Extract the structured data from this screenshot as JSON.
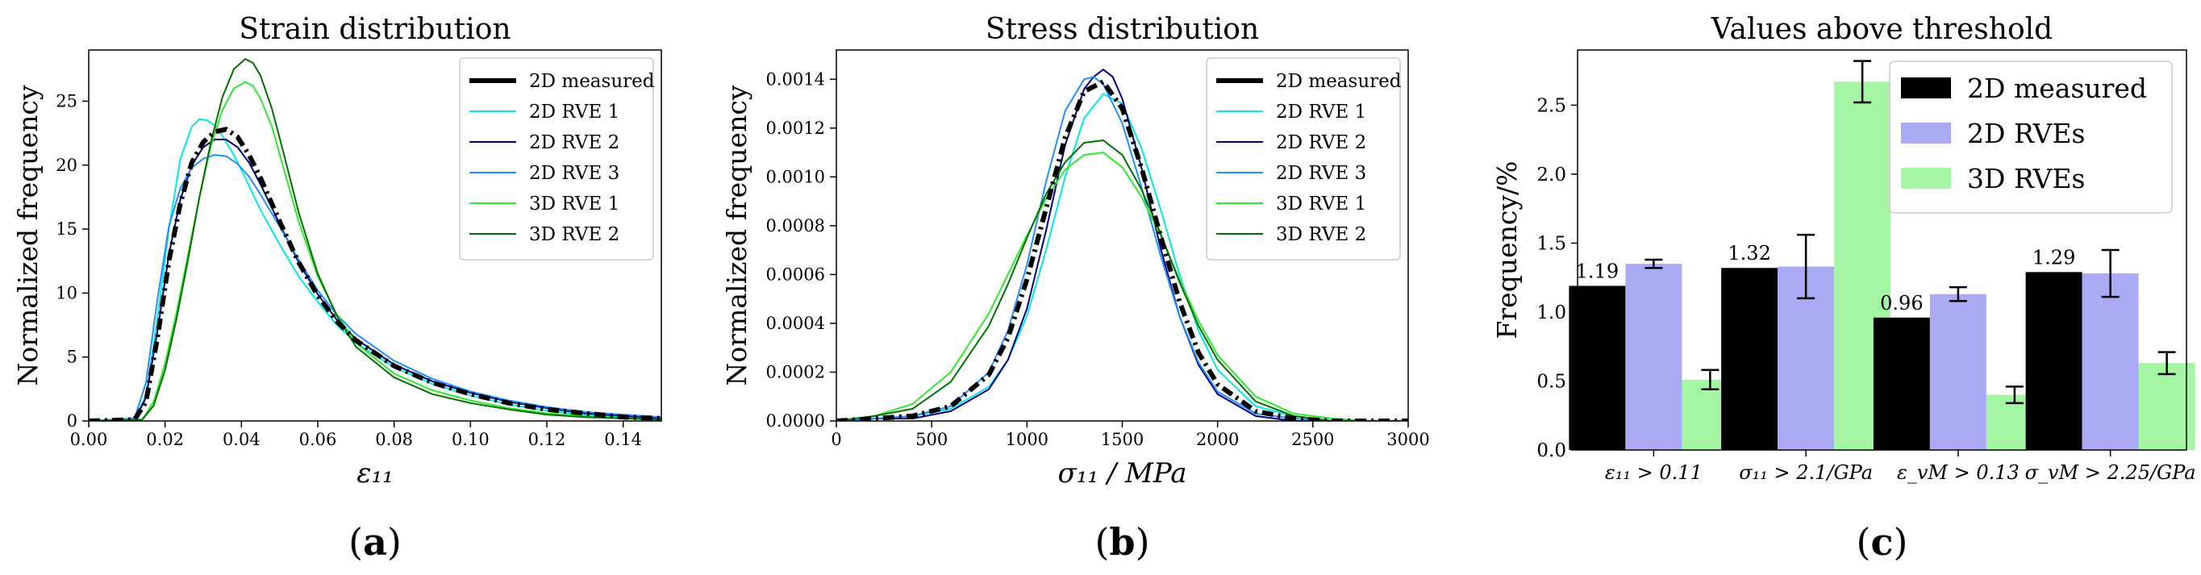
{
  "chart_data": [
    {
      "id": "a",
      "type": "line",
      "title": "Strain distribution",
      "xlabel": "ε₁₁",
      "ylabel": "Normalized frequency",
      "xlim": [
        0,
        0.15
      ],
      "ylim": [
        0,
        29
      ],
      "xticks": [
        0,
        0.02,
        0.04,
        0.06,
        0.08,
        0.1,
        0.12,
        0.14
      ],
      "xtick_labels": [
        "0.00",
        "0.02",
        "0.04",
        "0.06",
        "0.08",
        "0.10",
        "0.12",
        "0.14"
      ],
      "yticks": [
        0,
        5,
        10,
        15,
        20,
        25
      ],
      "ytick_labels": [
        "0",
        "5",
        "10",
        "15",
        "20",
        "25"
      ],
      "legend_position": "top-right",
      "panel_label": "(a)",
      "panel_letter": "a",
      "series": [
        {
          "name": "2D measured",
          "color": "#000000",
          "width": 6,
          "dash": "14,6,3,6",
          "x": [
            0,
            0.012,
            0.015,
            0.018,
            0.021,
            0.024,
            0.027,
            0.03,
            0.033,
            0.036,
            0.039,
            0.042,
            0.045,
            0.05,
            0.055,
            0.06,
            0.065,
            0.07,
            0.08,
            0.09,
            0.1,
            0.11,
            0.12,
            0.13,
            0.14,
            0.15
          ],
          "y": [
            0,
            0.1,
            1.5,
            6.5,
            12.5,
            17.0,
            20.2,
            21.8,
            22.6,
            22.8,
            22.2,
            20.8,
            19.0,
            15.6,
            12.4,
            9.8,
            7.8,
            6.3,
            4.3,
            3.0,
            2.1,
            1.4,
            0.9,
            0.6,
            0.3,
            0.2
          ]
        },
        {
          "name": "2D RVE 1",
          "color": "#00e8e8",
          "width": 2,
          "x": [
            0,
            0.012,
            0.015,
            0.018,
            0.021,
            0.024,
            0.027,
            0.029,
            0.031,
            0.033,
            0.035,
            0.038,
            0.041,
            0.045,
            0.05,
            0.055,
            0.06,
            0.065,
            0.07,
            0.08,
            0.09,
            0.1,
            0.11,
            0.12,
            0.13,
            0.14,
            0.15
          ],
          "y": [
            0,
            0.1,
            2.0,
            8.0,
            15.0,
            20.5,
            23.0,
            23.6,
            23.5,
            23.1,
            22.3,
            20.8,
            19.0,
            16.5,
            13.8,
            11.3,
            9.3,
            7.5,
            6.1,
            4.2,
            2.9,
            2.0,
            1.3,
            0.8,
            0.5,
            0.3,
            0.2
          ]
        },
        {
          "name": "2D RVE 2",
          "color": "#000080",
          "width": 2,
          "x": [
            0,
            0.012,
            0.015,
            0.018,
            0.021,
            0.024,
            0.027,
            0.03,
            0.033,
            0.036,
            0.039,
            0.042,
            0.045,
            0.05,
            0.055,
            0.06,
            0.065,
            0.07,
            0.08,
            0.09,
            0.1,
            0.11,
            0.12,
            0.13,
            0.14,
            0.15
          ],
          "y": [
            0,
            0.1,
            1.8,
            7.0,
            13.0,
            17.3,
            20.0,
            21.4,
            22.0,
            22.0,
            21.4,
            20.2,
            18.5,
            15.4,
            12.4,
            9.9,
            7.9,
            6.4,
            4.4,
            3.1,
            2.2,
            1.5,
            1.0,
            0.6,
            0.4,
            0.2
          ]
        },
        {
          "name": "2D RVE 3",
          "color": "#1e90ff",
          "width": 2,
          "x": [
            0,
            0.012,
            0.015,
            0.018,
            0.021,
            0.024,
            0.027,
            0.03,
            0.033,
            0.036,
            0.039,
            0.042,
            0.045,
            0.05,
            0.055,
            0.06,
            0.065,
            0.07,
            0.08,
            0.09,
            0.1,
            0.11,
            0.12,
            0.13,
            0.14,
            0.15
          ],
          "y": [
            0,
            0.2,
            3.0,
            9.5,
            15.2,
            18.2,
            19.8,
            20.5,
            20.8,
            20.7,
            20.1,
            19.1,
            17.7,
            15.2,
            12.6,
            10.2,
            8.3,
            6.8,
            4.7,
            3.3,
            2.3,
            1.6,
            1.1,
            0.7,
            0.5,
            0.3
          ]
        },
        {
          "name": "3D RVE 1",
          "color": "#2fe82f",
          "width": 2,
          "x": [
            0,
            0.014,
            0.017,
            0.02,
            0.023,
            0.026,
            0.029,
            0.032,
            0.035,
            0.038,
            0.041,
            0.043,
            0.045,
            0.048,
            0.051,
            0.055,
            0.06,
            0.065,
            0.07,
            0.08,
            0.09,
            0.1,
            0.11,
            0.12,
            0.13,
            0.14,
            0.15
          ],
          "y": [
            0,
            0.1,
            1.5,
            4.5,
            8.5,
            13.0,
            17.5,
            21.5,
            24.3,
            26.0,
            26.5,
            26.2,
            25.2,
            23.0,
            19.8,
            15.6,
            11.3,
            8.3,
            6.1,
            3.7,
            2.4,
            1.6,
            1.0,
            0.6,
            0.4,
            0.2,
            0.1
          ]
        },
        {
          "name": "3D RVE 2",
          "color": "#007000",
          "width": 2,
          "x": [
            0,
            0.014,
            0.017,
            0.02,
            0.023,
            0.026,
            0.029,
            0.032,
            0.035,
            0.038,
            0.041,
            0.043,
            0.045,
            0.048,
            0.051,
            0.055,
            0.06,
            0.065,
            0.07,
            0.08,
            0.09,
            0.1,
            0.11,
            0.12,
            0.13,
            0.14,
            0.15
          ],
          "y": [
            0,
            0.1,
            1.2,
            4.0,
            8.0,
            12.6,
            17.5,
            21.8,
            25.3,
            27.5,
            28.3,
            28.0,
            27.0,
            24.4,
            21.0,
            16.3,
            11.5,
            8.2,
            5.8,
            3.4,
            2.1,
            1.4,
            0.9,
            0.5,
            0.3,
            0.2,
            0.1
          ]
        }
      ]
    },
    {
      "id": "b",
      "type": "line",
      "title": "Stress distribution",
      "xlabel": "σ₁₁ / MPa",
      "ylabel": "Normalized frequency",
      "xlim": [
        0,
        3000
      ],
      "ylim": [
        0,
        0.00152
      ],
      "xticks": [
        0,
        500,
        1000,
        1500,
        2000,
        2500,
        3000
      ],
      "xtick_labels": [
        "0",
        "500",
        "1000",
        "1500",
        "2000",
        "2500",
        "3000"
      ],
      "yticks": [
        0,
        0.0002,
        0.0004,
        0.0006,
        0.0008,
        0.001,
        0.0012,
        0.0014
      ],
      "ytick_labels": [
        "0.0000",
        "0.0002",
        "0.0004",
        "0.0006",
        "0.0008",
        "0.0010",
        "0.0012",
        "0.0014"
      ],
      "legend_position": "top-right",
      "panel_label": "(b)",
      "panel_letter": "b",
      "series": [
        {
          "name": "2D measured",
          "color": "#000000",
          "width": 6,
          "dash": "14,6,3,6",
          "x": [
            0,
            200,
            400,
            600,
            800,
            900,
            1000,
            1100,
            1200,
            1300,
            1400,
            1500,
            1600,
            1700,
            1800,
            1900,
            2000,
            2200,
            2400,
            2600,
            2800,
            3000
          ],
          "y": [
            0,
            1e-05,
            2e-05,
            6e-05,
            0.00019,
            0.00034,
            0.00058,
            0.00087,
            0.00116,
            0.00135,
            0.00139,
            0.00128,
            0.00104,
            0.00076,
            0.00049,
            0.00028,
            0.00015,
            4e-05,
            1e-05,
            0,
            0,
            0
          ]
        },
        {
          "name": "2D RVE 1",
          "color": "#00e8e8",
          "width": 2,
          "x": [
            0,
            200,
            400,
            600,
            800,
            900,
            1000,
            1100,
            1200,
            1300,
            1400,
            1500,
            1600,
            1700,
            1800,
            1900,
            2000,
            2200,
            2400,
            2600,
            2800,
            3000
          ],
          "y": [
            0,
            1e-05,
            2e-05,
            5e-05,
            0.00014,
            0.00025,
            0.00043,
            0.0007,
            0.001,
            0.00124,
            0.00134,
            0.0013,
            0.00112,
            0.00087,
            0.0006,
            0.00037,
            0.00021,
            6e-05,
            2e-05,
            0,
            0,
            0
          ]
        },
        {
          "name": "2D RVE 2",
          "color": "#000080",
          "width": 2,
          "x": [
            0,
            200,
            400,
            600,
            800,
            900,
            1000,
            1100,
            1200,
            1300,
            1350,
            1400,
            1450,
            1500,
            1600,
            1700,
            1800,
            1900,
            2000,
            2200,
            2400,
            2600,
            2800,
            3000
          ],
          "y": [
            0,
            1e-05,
            1e-05,
            4e-05,
            0.00013,
            0.00025,
            0.00046,
            0.00078,
            0.00113,
            0.00136,
            0.00141,
            0.00144,
            0.00141,
            0.00132,
            0.00104,
            0.00071,
            0.00043,
            0.00023,
            0.00011,
            2e-05,
            0,
            0,
            0,
            0
          ]
        },
        {
          "name": "2D RVE 3",
          "color": "#1e90ff",
          "width": 2,
          "x": [
            0,
            200,
            400,
            600,
            800,
            900,
            1000,
            1100,
            1200,
            1300,
            1350,
            1400,
            1500,
            1600,
            1700,
            1800,
            1900,
            2000,
            2200,
            2400,
            2600,
            2800,
            3000
          ],
          "y": [
            0,
            1e-05,
            2e-05,
            6e-05,
            0.0002,
            0.00037,
            0.00064,
            0.00098,
            0.00127,
            0.0014,
            0.00141,
            0.00138,
            0.00122,
            0.00096,
            0.00068,
            0.00043,
            0.00024,
            0.00012,
            3e-05,
            1e-05,
            0,
            0,
            0
          ]
        },
        {
          "name": "3D RVE 1",
          "color": "#2fe82f",
          "width": 2,
          "x": [
            0,
            200,
            400,
            600,
            800,
            900,
            1000,
            1100,
            1200,
            1300,
            1400,
            1500,
            1600,
            1700,
            1800,
            1900,
            2000,
            2200,
            2400,
            2600,
            2800,
            3000
          ],
          "y": [
            0,
            2e-05,
            7e-05,
            0.0002,
            0.00044,
            0.0006,
            0.00076,
            0.00091,
            0.00103,
            0.00109,
            0.0011,
            0.00104,
            0.00092,
            0.00076,
            0.00058,
            0.00041,
            0.00027,
            0.0001,
            3e-05,
            1e-05,
            0,
            0
          ]
        },
        {
          "name": "3D RVE 2",
          "color": "#007000",
          "width": 2,
          "x": [
            0,
            200,
            400,
            600,
            800,
            900,
            1000,
            1100,
            1200,
            1300,
            1400,
            1500,
            1600,
            1700,
            1800,
            1900,
            2000,
            2200,
            2400,
            2600,
            2800,
            3000
          ],
          "y": [
            0,
            2e-05,
            5e-05,
            0.00016,
            0.00039,
            0.00056,
            0.00075,
            0.00093,
            0.00106,
            0.00114,
            0.00115,
            0.00109,
            0.00095,
            0.00077,
            0.00057,
            0.00039,
            0.00025,
            8e-05,
            2e-05,
            0,
            0,
            0
          ]
        }
      ]
    },
    {
      "id": "c",
      "type": "bar",
      "title": "Values above threshold",
      "xlabel": "",
      "ylabel": "Frequency/%",
      "ylim": [
        0,
        2.9
      ],
      "yticks": [
        0,
        0.5,
        1.0,
        1.5,
        2.0,
        2.5
      ],
      "ytick_labels": [
        "0.0",
        "0.5",
        "1.0",
        "1.5",
        "2.0",
        "2.5"
      ],
      "legend_position": "top-right",
      "panel_label": "(c)",
      "panel_letter": "c",
      "categories": [
        "ε₁₁ > 0.11",
        "σ₁₁ > 2.1/GPa",
        "ε_vM > 0.13",
        "σ_vM > 2.25/GPa"
      ],
      "series": [
        {
          "name": "2D measured",
          "color": "#000000",
          "values": [
            1.19,
            1.32,
            0.96,
            1.29
          ],
          "errors": [
            0,
            0,
            0,
            0
          ],
          "labels": [
            "1.19",
            "1.32",
            "0.96",
            "1.29"
          ]
        },
        {
          "name": "2D RVEs",
          "color": "#aaaaf5",
          "values": [
            1.35,
            1.33,
            1.13,
            1.28
          ],
          "errors": [
            0.03,
            0.23,
            0.05,
            0.17
          ]
        },
        {
          "name": "3D RVEs",
          "color": "#a4f5a4",
          "values": [
            0.51,
            2.67,
            0.4,
            0.63
          ],
          "errors": [
            0.07,
            0.15,
            0.06,
            0.08
          ]
        }
      ]
    }
  ]
}
